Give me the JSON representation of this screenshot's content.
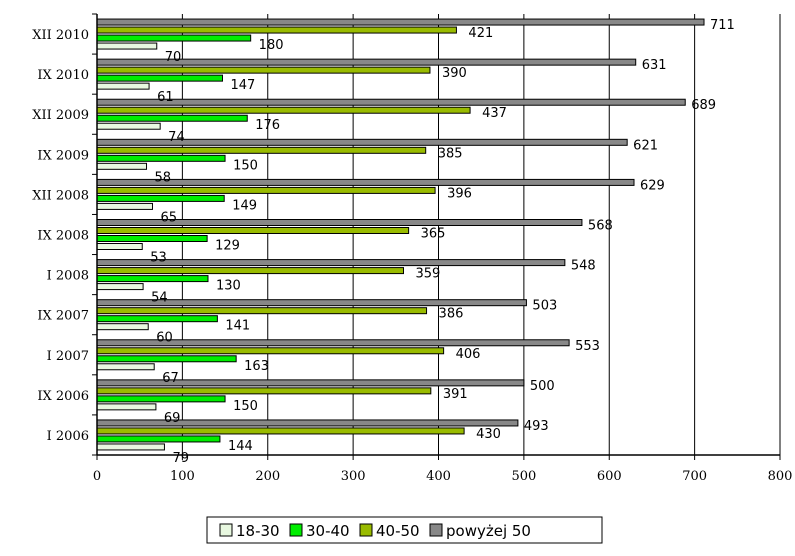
{
  "chart_data": {
    "type": "bar",
    "orientation": "horizontal",
    "categories": [
      "I 2006",
      "IX 2006",
      "I 2007",
      "IX 2007",
      "I 2008",
      "IX 2008",
      "XII 2008",
      "IX 2009",
      "XII 2009",
      "IX 2010",
      "XII 2010"
    ],
    "series": [
      {
        "name": "18-30",
        "color": "#e8f8e0",
        "values": [
          79,
          69,
          67,
          60,
          54,
          53,
          65,
          58,
          74,
          61,
          70
        ]
      },
      {
        "name": "30-40",
        "color": "#00ee00",
        "values": [
          144,
          150,
          163,
          141,
          130,
          129,
          149,
          150,
          176,
          147,
          180
        ]
      },
      {
        "name": "40-50",
        "color": "#99bb00",
        "values": [
          430,
          391,
          406,
          386,
          359,
          365,
          396,
          385,
          437,
          390,
          421
        ]
      },
      {
        "name": "powyżej 50",
        "color": "#888888",
        "values": [
          493,
          500,
          553,
          503,
          548,
          568,
          629,
          621,
          689,
          631,
          711
        ]
      }
    ],
    "xlim": [
      0,
      800
    ],
    "xticks": [
      0,
      100,
      200,
      300,
      400,
      500,
      600,
      700,
      800
    ],
    "grid": "vertical",
    "legend_position": "bottom-center",
    "title": "",
    "xlabel": "",
    "ylabel": ""
  }
}
